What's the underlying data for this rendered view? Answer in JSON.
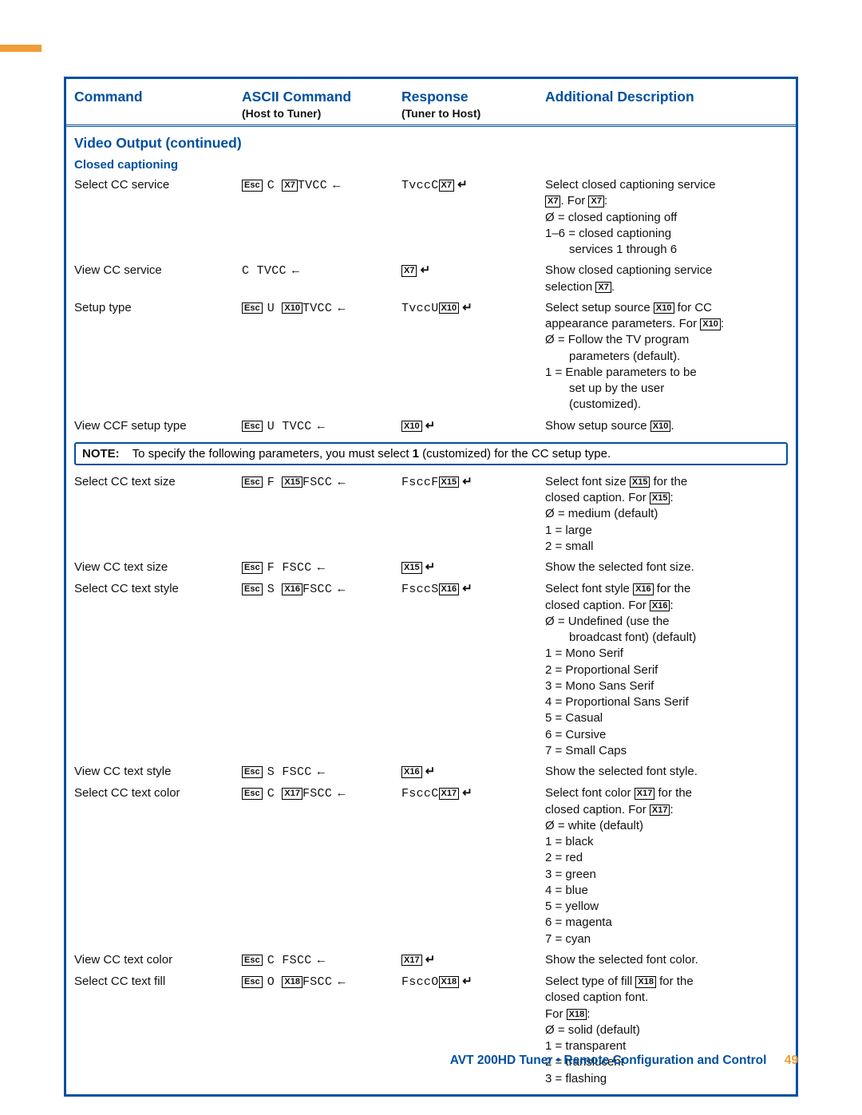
{
  "topStripeColor": "#f19c38",
  "header": {
    "col1": "Command",
    "col2": "ASCII Command",
    "col2sub": "(Host to Tuner)",
    "col3": "Response",
    "col3sub": "(Tuner to Host)",
    "col4": "Additional Description"
  },
  "section": "Video Output (continued)",
  "subsection": "Closed captioning",
  "escLabel": "Esc",
  "rows": [
    {
      "cmd": "Select CC service",
      "ascii": {
        "esc": true,
        "pre": "C ",
        "x": "X7",
        "post": "TVCC",
        "enter": true
      },
      "resp": {
        "pre": "TvccC",
        "x": "X7",
        "ret": true
      },
      "desc": [
        {
          "t": "Select closed captioning service "
        },
        {
          "x": "X7",
          "t2": ". For ",
          "x2": "X7",
          "t3": ":"
        },
        {
          "slashO": true,
          "t": " = closed captioning off"
        },
        {
          "t": "1–6 = closed captioning"
        },
        {
          "indent": true,
          "t": "services 1 through 6"
        }
      ]
    },
    {
      "cmd": "View CC service",
      "ascii": {
        "esc": false,
        "pre": "C TVCC",
        "enter": true
      },
      "resp": {
        "x": "X7",
        "ret": true
      },
      "desc": [
        {
          "t": "Show closed captioning service"
        },
        {
          "t": "selection ",
          "x": "X7",
          "t2": "."
        }
      ]
    },
    {
      "cmd": "Setup type",
      "ascii": {
        "esc": true,
        "pre": "U ",
        "x": "X10",
        "post": "TVCC",
        "enter": true
      },
      "resp": {
        "pre": "TvccU",
        "x": "X10",
        "ret": true
      },
      "desc": [
        {
          "t": "Select setup source ",
          "x": "X10",
          "t2": " for CC"
        },
        {
          "t": "appearance parameters. For ",
          "x": "X10",
          "t2": ":"
        },
        {
          "slashO": true,
          "t": " = Follow the TV program"
        },
        {
          "indent": true,
          "t": "parameters (default)."
        },
        {
          "t": "1 =  Enable parameters to be"
        },
        {
          "indent": true,
          "t": "set up by the user"
        },
        {
          "indent": true,
          "t": "(customized)."
        }
      ]
    },
    {
      "cmd": "View CCF setup type",
      "ascii": {
        "esc": true,
        "pre": "U TVCC",
        "enter": true
      },
      "resp": {
        "x": "X10",
        "ret": true
      },
      "desc": [
        {
          "t": "Show setup source ",
          "x": "X10",
          "t2": "."
        }
      ]
    }
  ],
  "note": {
    "label": "NOTE:",
    "textPre": "To specify the following parameters, you must select ",
    "bold": "1",
    "textPost": " (customized) for the CC setup type."
  },
  "rows2": [
    {
      "cmd": "Select CC text size",
      "ascii": {
        "esc": true,
        "pre": "F ",
        "x": "X15",
        "post": "FSCC",
        "enter": true
      },
      "resp": {
        "pre": "FsccF",
        "x": "X15",
        "ret": true
      },
      "desc": [
        {
          "t": "Select font size ",
          "x": "X15",
          "t2": " for the"
        },
        {
          "t": "closed caption. For ",
          "x": "X15",
          "t2": ":"
        },
        {
          "slashO": true,
          "t": " = medium (default)"
        },
        {
          "t": "1 = large"
        },
        {
          "t": "2 = small"
        }
      ]
    },
    {
      "cmd": "View CC text size",
      "ascii": {
        "esc": true,
        "pre": "F FSCC",
        "enter": true
      },
      "resp": {
        "x": "X15",
        "ret": true
      },
      "desc": [
        {
          "t": "Show the selected font size."
        }
      ]
    },
    {
      "cmd": "Select CC text style",
      "ascii": {
        "esc": true,
        "pre": "S ",
        "x": "X16",
        "post": "FSCC",
        "enter": true
      },
      "resp": {
        "pre": "FsccS",
        "x": "X16",
        "ret": true
      },
      "desc": [
        {
          "t": "Select font style ",
          "x": "X16",
          "t2": " for the"
        },
        {
          "t": "closed caption. For  ",
          "x": "X16",
          "t2": ":"
        },
        {
          "slashO": true,
          "t": " = Undefined (use the"
        },
        {
          "indent": true,
          "t": "broadcast font) (default)"
        },
        {
          "t": "1 = Mono Serif"
        },
        {
          "t": "2 = Proportional Serif"
        },
        {
          "t": "3 = Mono Sans Serif"
        },
        {
          "t": "4 = Proportional Sans Serif"
        },
        {
          "t": "5 = Casual"
        },
        {
          "t": "6 = Cursive"
        },
        {
          "t": "7 = Small Caps"
        }
      ]
    },
    {
      "cmd": "View CC text style",
      "ascii": {
        "esc": true,
        "pre": "S FSCC",
        "enter": true
      },
      "resp": {
        "x": "X16",
        "ret": true
      },
      "desc": [
        {
          "t": "Show the selected font style."
        }
      ]
    },
    {
      "cmd": "Select CC text color",
      "ascii": {
        "esc": true,
        "pre": "C ",
        "x": "X17",
        "post": "FSCC",
        "enter": true
      },
      "resp": {
        "pre": "FsccC",
        "x": "X17",
        "ret": true
      },
      "desc": [
        {
          "t": "Select font color ",
          "x": "X17",
          "t2": " for the"
        },
        {
          "t": "closed caption. For ",
          "x": "X17",
          "t2": ":"
        },
        {
          "slashO": true,
          "t": " = white (default)"
        },
        {
          "t": "1 = black"
        },
        {
          "t": "2 = red"
        },
        {
          "t": "3 = green"
        },
        {
          "t": "4 = blue"
        },
        {
          "t": "5 = yellow"
        },
        {
          "t": "6 = magenta"
        },
        {
          "t": "7 = cyan"
        }
      ]
    },
    {
      "cmd": "View CC text color",
      "ascii": {
        "esc": true,
        "pre": "C FSCC",
        "enter": true
      },
      "resp": {
        "x": "X17",
        "ret": true
      },
      "desc": [
        {
          "t": "Show the selected font color."
        }
      ]
    },
    {
      "cmd": "Select CC text fill",
      "ascii": {
        "esc": true,
        "pre": "O ",
        "x": "X18",
        "post": "FSCC",
        "enter": true
      },
      "resp": {
        "pre": "FsccO",
        "x": "X18",
        "ret": true
      },
      "desc": [
        {
          "t": "Select type of fill ",
          "x": "X18",
          "t2": " for the"
        },
        {
          "t": "closed caption font."
        },
        {
          "t": "For ",
          "x": "X18",
          "t2": ":"
        },
        {
          "slashO": true,
          "t": " = solid (default)"
        },
        {
          "t": "1 = transparent"
        },
        {
          "t": "2 = translucent"
        },
        {
          "t": "3 = flashing"
        }
      ]
    }
  ],
  "footer": {
    "text": "AVT 200HD Tuner • Remote Configuration and Control",
    "page": "49"
  }
}
